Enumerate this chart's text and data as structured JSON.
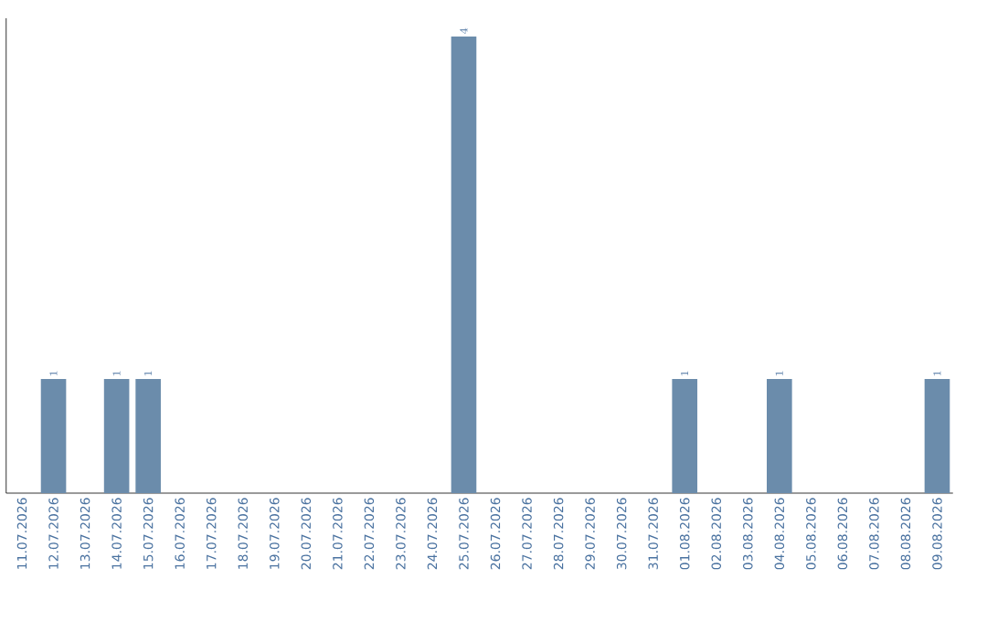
{
  "chart_data": {
    "type": "bar",
    "categories": [
      "11.07.2026",
      "12.07.2026",
      "13.07.2026",
      "14.07.2026",
      "15.07.2026",
      "16.07.2026",
      "17.07.2026",
      "18.07.2026",
      "19.07.2026",
      "20.07.2026",
      "21.07.2026",
      "22.07.2026",
      "23.07.2026",
      "24.07.2026",
      "25.07.2026",
      "26.07.2026",
      "27.07.2026",
      "28.07.2026",
      "29.07.2026",
      "30.07.2026",
      "31.07.2026",
      "01.08.2026",
      "02.08.2026",
      "03.08.2026",
      "04.08.2026",
      "05.08.2026",
      "06.08.2026",
      "07.08.2026",
      "08.08.2026",
      "09.08.2026"
    ],
    "values": [
      null,
      1,
      null,
      1,
      1,
      null,
      null,
      null,
      null,
      null,
      null,
      null,
      null,
      null,
      4,
      null,
      null,
      null,
      null,
      null,
      null,
      1,
      null,
      null,
      1,
      null,
      null,
      null,
      null,
      1
    ],
    "color": "#6b8cab",
    "data_labels": true
  }
}
